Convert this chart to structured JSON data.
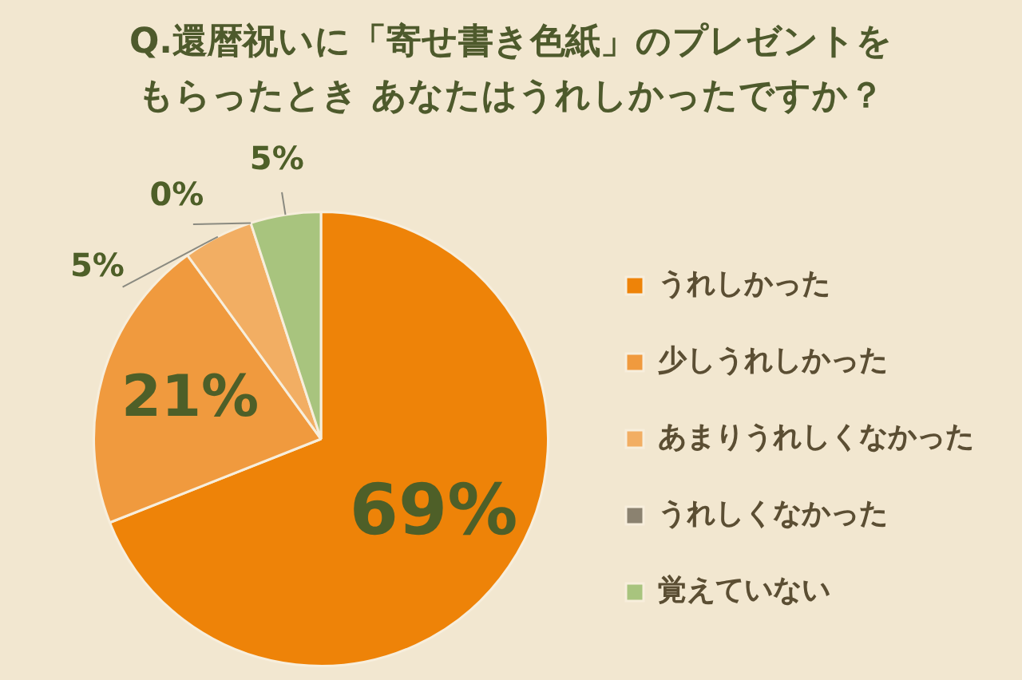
{
  "chart_data": {
    "type": "pie",
    "title": "Q.還暦祝いに「寄せ書き色紙」のプレゼントをもらったとき あなたはうれしかったですか？",
    "categories": [
      "うれしかった",
      "少しうれしかった",
      "あまりうれしくなかった",
      "うれしくなかった",
      "覚えていない"
    ],
    "values": [
      69,
      21,
      5,
      0,
      5
    ],
    "colors": [
      "#ee8308",
      "#f09a3e",
      "#f2ae63",
      "#8b8270",
      "#a8c47e"
    ],
    "value_labels": [
      "69%",
      "21%",
      "5%",
      "0%",
      "5%"
    ],
    "legend": "right"
  }
}
